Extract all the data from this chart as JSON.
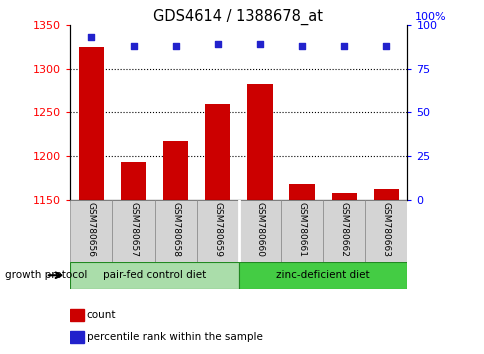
{
  "title": "GDS4614 / 1388678_at",
  "samples": [
    "GSM780656",
    "GSM780657",
    "GSM780658",
    "GSM780659",
    "GSM780660",
    "GSM780661",
    "GSM780662",
    "GSM780663"
  ],
  "counts": [
    1325,
    1193,
    1217,
    1260,
    1282,
    1168,
    1158,
    1163
  ],
  "percentiles": [
    93,
    88,
    88,
    89,
    89,
    88,
    88,
    88
  ],
  "ylim_left": [
    1150,
    1350
  ],
  "ylim_right": [
    0,
    100
  ],
  "yticks_left": [
    1150,
    1200,
    1250,
    1300,
    1350
  ],
  "yticks_right": [
    0,
    25,
    50,
    75,
    100
  ],
  "bar_color": "#cc0000",
  "dot_color": "#2222cc",
  "group1_label": "pair-fed control diet",
  "group2_label": "zinc-deficient diet",
  "group1_color": "#aaddaa",
  "group2_color": "#44cc44",
  "growth_protocol_label": "growth protocol",
  "legend_count": "count",
  "legend_percentile": "percentile rank within the sample",
  "plot_bg_color": "#ffffff",
  "dotted_lines": [
    1200,
    1250,
    1300
  ],
  "bar_width": 0.6
}
